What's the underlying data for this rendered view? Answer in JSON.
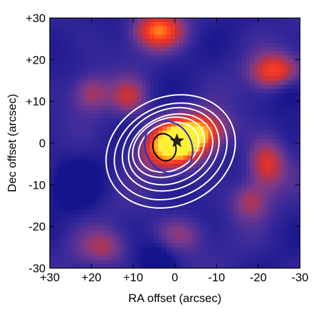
{
  "chart_data": {
    "type": "heatmap",
    "xlabel": "RA offset (arcsec)",
    "ylabel": "Dec offset (arcsec)",
    "xlim": [
      30,
      -30
    ],
    "ylim": [
      -30,
      30
    ],
    "x_ticks": [
      30,
      20,
      10,
      0,
      -10,
      -20,
      -30
    ],
    "y_ticks": [
      30,
      20,
      10,
      0,
      -10,
      -20,
      -30
    ],
    "x_tick_labels": [
      "+30",
      "+20",
      "+10",
      "0",
      "-10",
      "-20",
      "-30"
    ],
    "y_tick_labels": [
      "+30",
      "+20",
      "+10",
      "0",
      "-10",
      "-20",
      "-30"
    ],
    "colormap": [
      "#14148c",
      "#3a2a9a",
      "#7a3a8a",
      "#c8323a",
      "#ff3a22",
      "#ff9f1a",
      "#fff03a"
    ],
    "emission_features": [
      {
        "x": 0,
        "y": 0,
        "peak": 1.0,
        "sigma_x": 5,
        "sigma_y": 3.5,
        "rotation_deg": -20
      },
      {
        "x": -5,
        "y": 2,
        "peak": 0.55,
        "sigma_x": 5,
        "sigma_y": 3,
        "rotation_deg": -15
      },
      {
        "x": 4,
        "y": 27,
        "peak": 0.6,
        "sigma_x": 4,
        "sigma_y": 3
      },
      {
        "x": -24,
        "y": 17,
        "peak": 0.55,
        "sigma_x": 4,
        "sigma_y": 3
      },
      {
        "x": -22,
        "y": -5,
        "peak": 0.45,
        "sigma_x": 3,
        "sigma_y": 4
      },
      {
        "x": 11,
        "y": 11,
        "peak": 0.35,
        "sigma_x": 3,
        "sigma_y": 3
      },
      {
        "x": 20,
        "y": 12,
        "peak": 0.3,
        "sigma_x": 3,
        "sigma_y": 3
      },
      {
        "x": -18,
        "y": -14,
        "peak": 0.3,
        "sigma_x": 3,
        "sigma_y": 3
      },
      {
        "x": 17,
        "y": -25,
        "peak": 0.28,
        "sigma_x": 4,
        "sigma_y": 3
      },
      {
        "x": -1,
        "y": -22,
        "peak": 0.25,
        "sigma_x": 4,
        "sigma_y": 3
      }
    ],
    "absorption_features": [
      {
        "x": 24,
        "y": -10,
        "depth": 0.25,
        "sigma": 4
      },
      {
        "x": -27,
        "y": 13,
        "depth": 0.2,
        "sigma": 3
      },
      {
        "x": 4,
        "y": -28,
        "depth": 0.2,
        "sigma": 3
      }
    ],
    "contours": [
      {
        "color": "#ffffff",
        "rx": 16,
        "ry": 13,
        "cx": 1,
        "cy": -2,
        "rotation_deg": -25
      },
      {
        "color": "#ffffff",
        "rx": 14,
        "ry": 11,
        "cx": 1,
        "cy": -2,
        "rotation_deg": -25
      },
      {
        "color": "#ffffff",
        "rx": 12,
        "ry": 9.5,
        "cx": 1,
        "cy": -1.5,
        "rotation_deg": -25
      },
      {
        "color": "#ffffff",
        "rx": 10.5,
        "ry": 8,
        "cx": 1,
        "cy": -1.5,
        "rotation_deg": -25
      },
      {
        "color": "#ffffff",
        "rx": 9,
        "ry": 6.8,
        "cx": 1.5,
        "cy": -1,
        "rotation_deg": -25
      },
      {
        "color": "#ffffff",
        "rx": 7.5,
        "ry": 5.6,
        "cx": 1.5,
        "cy": -1,
        "rotation_deg": -25
      },
      {
        "color": "#1f2fd0",
        "rx": 5.5,
        "ry": 6.5,
        "cx": 1.5,
        "cy": -1,
        "rotation_deg": -30
      },
      {
        "color": "#000000",
        "rx": 2.7,
        "ry": 3.3,
        "cx": 2.5,
        "cy": -1,
        "rotation_deg": -20
      }
    ],
    "marker": {
      "shape": "star",
      "x": -0.5,
      "y": 0.5,
      "color": "#222222"
    }
  }
}
